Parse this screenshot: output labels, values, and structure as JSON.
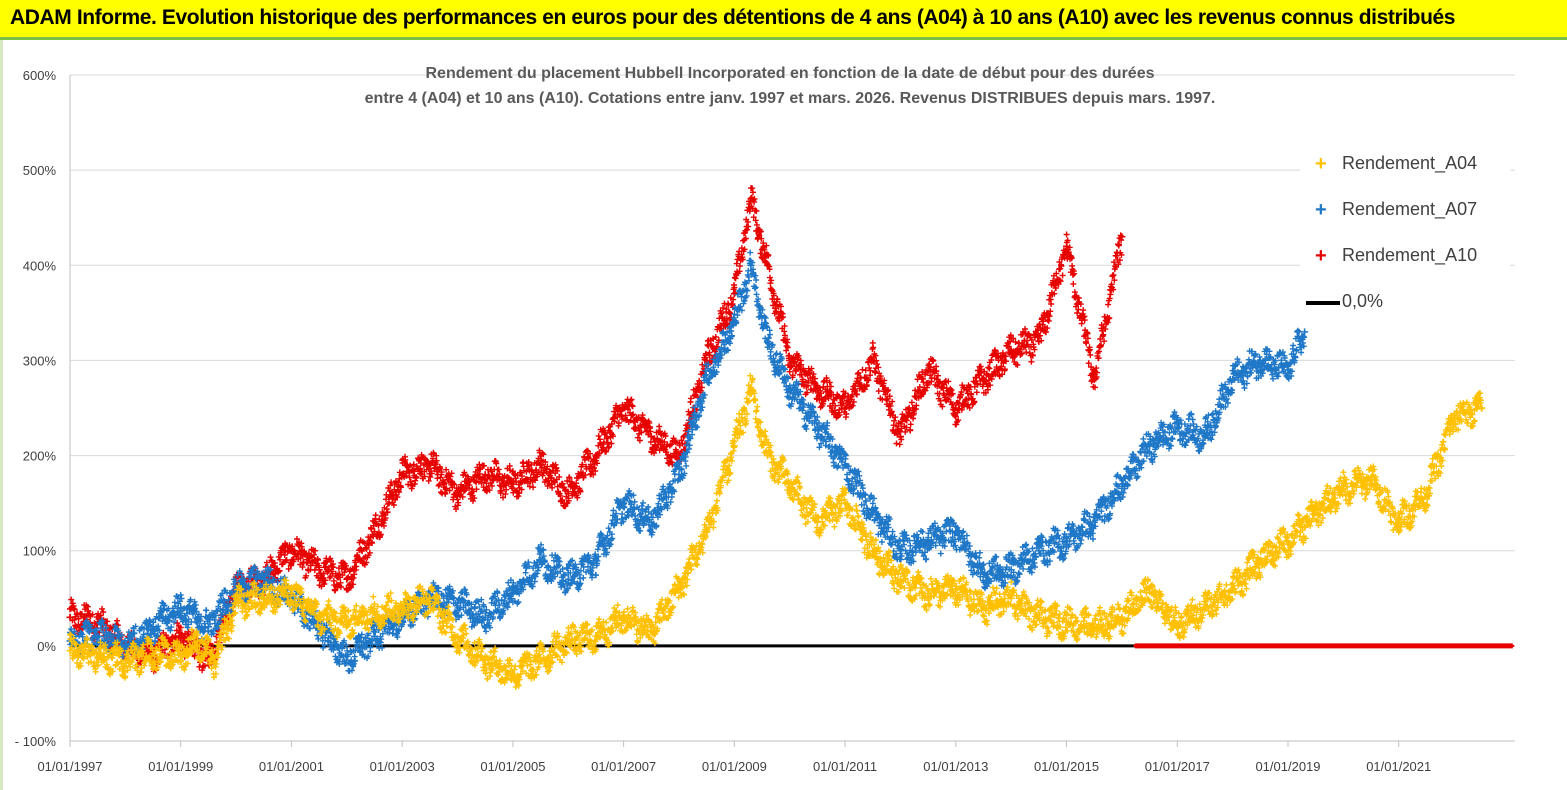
{
  "header": {
    "title": "ADAM Informe. Evolution historique des performances en euros pour des détentions de 4 ans (A04) à 10 ans (A10) avec les revenus connus distribués"
  },
  "chart_data": {
    "type": "scatter",
    "title_line1": "Rendement du placement Hubbell Incorporated en fonction de la date de début pour des durées",
    "title_line2": "entre 4 (A04) et 10 ans (A10). Cotations entre janv. 1997 et mars. 2026. Revenus DISTRIBUES depuis mars. 1997.",
    "ylim": [
      -100,
      600
    ],
    "xlim": [
      1997.0,
      2023.1
    ],
    "y_ticks": [
      {
        "v": -100,
        "label": "- 100%"
      },
      {
        "v": 0,
        "label": "0%"
      },
      {
        "v": 100,
        "label": "100%"
      },
      {
        "v": 200,
        "label": "200%"
      },
      {
        "v": 300,
        "label": "300%"
      },
      {
        "v": 400,
        "label": "400%"
      },
      {
        "v": 500,
        "label": "500%"
      },
      {
        "v": 600,
        "label": "600%"
      }
    ],
    "x_ticks": [
      {
        "v": 1997,
        "label": "01/01/1997"
      },
      {
        "v": 1999,
        "label": "01/01/1999"
      },
      {
        "v": 2001,
        "label": "01/01/2001"
      },
      {
        "v": 2003,
        "label": "01/01/2003"
      },
      {
        "v": 2005,
        "label": "01/01/2005"
      },
      {
        "v": 2007,
        "label": "01/01/2007"
      },
      {
        "v": 2009,
        "label": "01/01/2009"
      },
      {
        "v": 2011,
        "label": "01/01/2011"
      },
      {
        "v": 2013,
        "label": "01/01/2013"
      },
      {
        "v": 2015,
        "label": "01/01/2015"
      },
      {
        "v": 2017,
        "label": "01/01/2017"
      },
      {
        "v": 2019,
        "label": "01/01/2019"
      },
      {
        "v": 2021,
        "label": "01/01/2021"
      }
    ],
    "series": [
      {
        "name": "Rendement_A04",
        "color": "#ffc000",
        "x": [
          1997.0,
          1997.5,
          1998.0,
          1998.5,
          1999.0,
          1999.3,
          1999.6,
          2000.0,
          2000.5,
          2001.0,
          2001.5,
          2002.0,
          2002.5,
          2003.0,
          2003.5,
          2004.0,
          2004.5,
          2005.0,
          2005.5,
          2006.0,
          2006.5,
          2007.0,
          2007.5,
          2008.0,
          2008.5,
          2009.0,
          2009.3,
          2009.6,
          2010.0,
          2010.5,
          2011.0,
          2011.5,
          2012.0,
          2012.5,
          2013.0,
          2013.5,
          2014.0,
          2014.5,
          2015.0,
          2015.5,
          2016.0,
          2016.5,
          2017.0,
          2017.5,
          2018.0,
          2018.5,
          2019.0,
          2019.5,
          2020.0,
          2020.5,
          2021.0,
          2021.5,
          2022.0,
          2022.5
        ],
        "y": [
          -5,
          -12,
          -15,
          -8,
          -10,
          5,
          -18,
          45,
          50,
          55,
          30,
          25,
          35,
          40,
          50,
          10,
          -15,
          -30,
          -15,
          5,
          10,
          30,
          15,
          60,
          120,
          210,
          270,
          200,
          170,
          130,
          150,
          100,
          70,
          55,
          60,
          40,
          50,
          30,
          25,
          20,
          30,
          60,
          20,
          40,
          60,
          90,
          110,
          140,
          165,
          175,
          130,
          160,
          240,
          250
        ]
      },
      {
        "name": "Rendement_A07",
        "color": "#1f77c7",
        "x": [
          1997.0,
          1997.5,
          1998.0,
          1998.5,
          1999.0,
          1999.5,
          2000.0,
          2000.5,
          2001.0,
          2001.5,
          2002.0,
          2002.5,
          2003.0,
          2003.5,
          2004.0,
          2004.5,
          2005.0,
          2005.5,
          2006.0,
          2006.5,
          2007.0,
          2007.5,
          2008.0,
          2008.5,
          2009.0,
          2009.3,
          2009.6,
          2010.0,
          2010.5,
          2011.0,
          2011.5,
          2012.0,
          2012.5,
          2013.0,
          2013.5,
          2014.0,
          2014.5,
          2015.0,
          2015.5,
          2016.0,
          2016.5,
          2017.0,
          2017.5,
          2018.0,
          2018.5,
          2019.0,
          2019.3
        ],
        "y": [
          5,
          10,
          0,
          20,
          40,
          20,
          60,
          70,
          50,
          20,
          -15,
          10,
          30,
          50,
          45,
          30,
          55,
          90,
          70,
          90,
          150,
          130,
          180,
          280,
          340,
          400,
          320,
          270,
          230,
          190,
          140,
          100,
          110,
          120,
          75,
          80,
          100,
          110,
          130,
          170,
          210,
          230,
          220,
          280,
          300,
          290,
          330
        ]
      },
      {
        "name": "Rendement_A10",
        "color": "#e60000",
        "x": [
          1997.0,
          1997.5,
          1998.0,
          1998.5,
          1999.0,
          1999.5,
          2000.0,
          2000.5,
          2001.0,
          2001.5,
          2002.0,
          2002.5,
          2003.0,
          2003.5,
          2004.0,
          2004.5,
          2005.0,
          2005.5,
          2006.0,
          2006.5,
          2007.0,
          2007.5,
          2008.0,
          2008.5,
          2009.0,
          2009.3,
          2009.6,
          2010.0,
          2010.5,
          2011.0,
          2011.5,
          2012.0,
          2012.5,
          2013.0,
          2013.5,
          2014.0,
          2014.5,
          2015.0,
          2015.5,
          2016.0
        ],
        "y": [
          30,
          25,
          0,
          -10,
          10,
          -15,
          60,
          70,
          100,
          80,
          70,
          120,
          180,
          190,
          160,
          180,
          170,
          190,
          160,
          200,
          250,
          220,
          200,
          300,
          370,
          470,
          400,
          300,
          270,
          250,
          300,
          220,
          290,
          250,
          280,
          310,
          320,
          420,
          280,
          430
        ]
      },
      {
        "name": "0,0%",
        "color": "#000000",
        "x": [
          1997.0,
          2016.25
        ],
        "y": [
          0,
          0
        ]
      }
    ],
    "zero_markers": {
      "color": "#e60000",
      "x_from": 2016.25,
      "x_to": 2023.05,
      "y": 0
    }
  }
}
